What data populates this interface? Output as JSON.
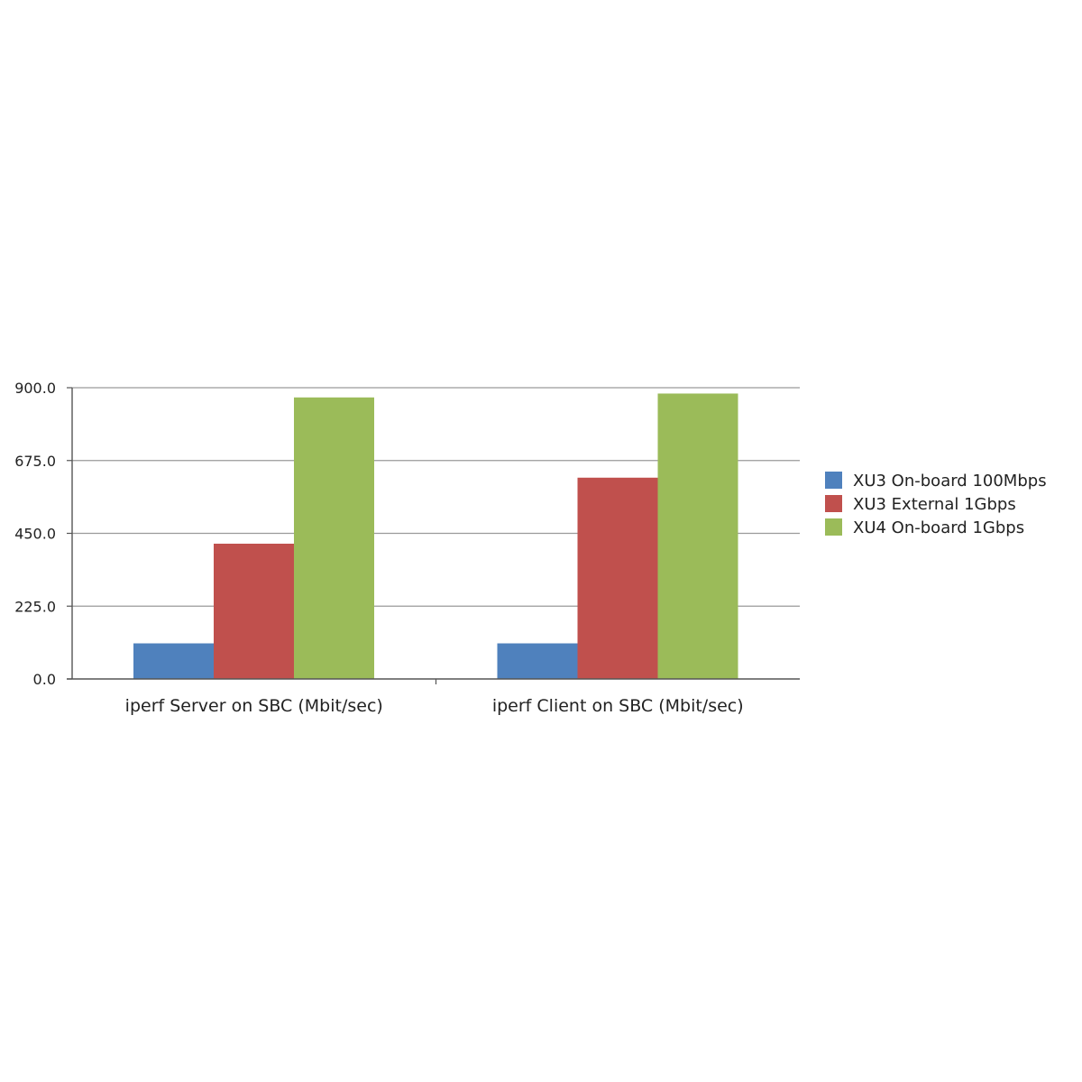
{
  "chart_data": {
    "type": "bar",
    "title": "",
    "xlabel": "",
    "ylabel": "",
    "categories": [
      "iperf Server on SBC (Mbit/sec)",
      "iperf Client on SBC (Mbit/sec)"
    ],
    "series": [
      {
        "name": "XU3 On-board 100Mbps",
        "color": "#4f81bd",
        "values": [
          110,
          110
        ]
      },
      {
        "name": "XU3 External 1Gbps",
        "color": "#c0504d",
        "values": [
          418,
          622
        ]
      },
      {
        "name": "XU4 On-board 1Gbps",
        "color": "#9bbb59",
        "values": [
          870,
          882
        ]
      }
    ],
    "ylim": [
      0,
      900
    ],
    "yticks": [
      0,
      225,
      450,
      675,
      900
    ],
    "ytick_labels": [
      "0.0",
      "225.0",
      "450.0",
      "675.0",
      "900.0"
    ],
    "grid": true,
    "legend_position": "right"
  }
}
